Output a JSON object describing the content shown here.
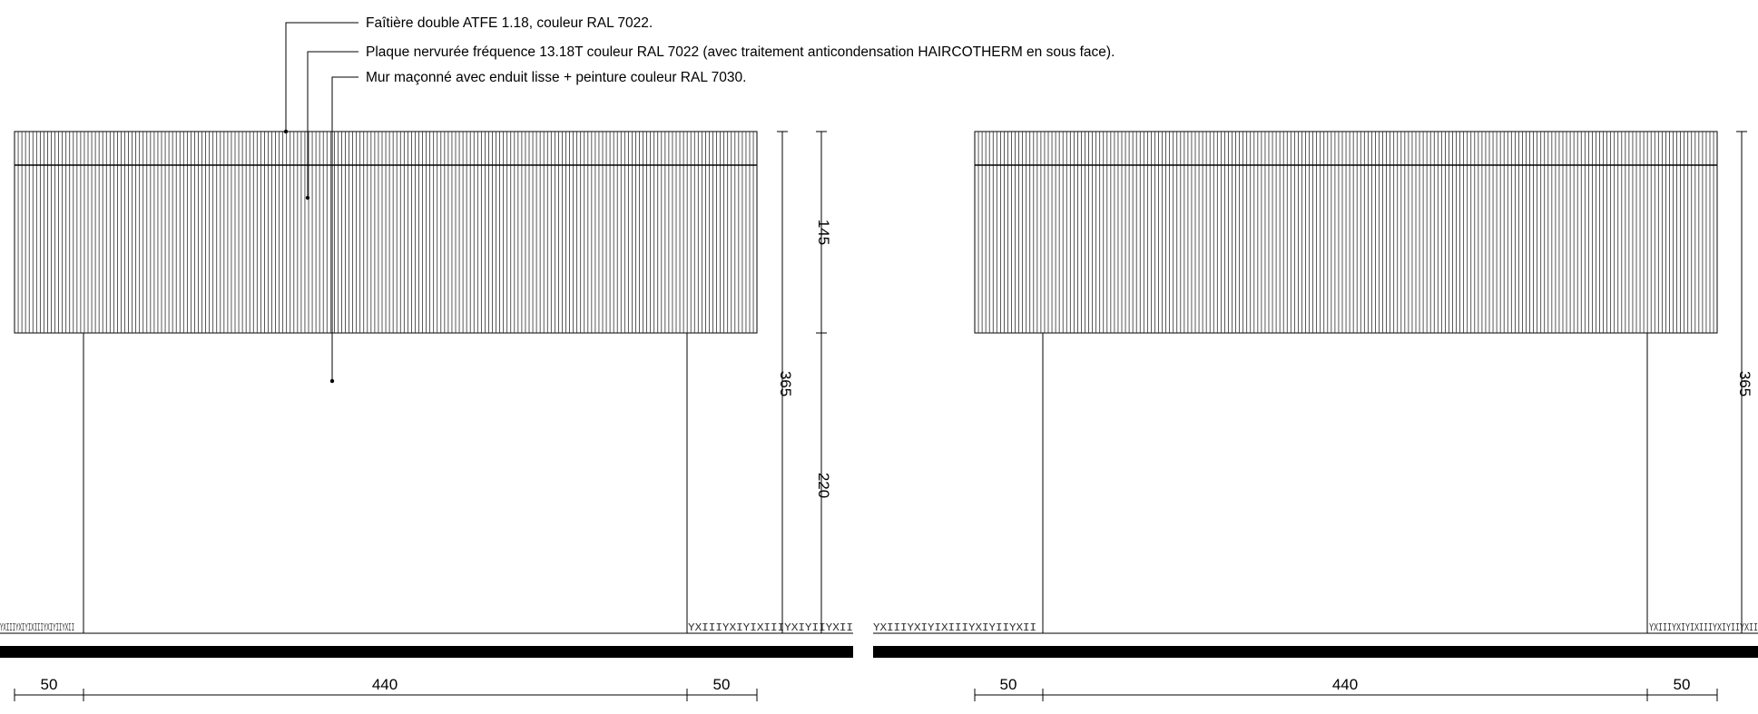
{
  "annotations": [
    "Faîtière double ATFE 1.18, couleur RAL 7022.",
    "Plaque nervurée fréquence 13.18T couleur RAL 7022 (avec traitement anticondensation HAIRCOTHERM en sous face).",
    "Mur maçonné avec enduit lisse + peinture couleur RAL 7030."
  ],
  "elevation_left": {
    "height_total": "365",
    "height_roof": "145",
    "height_wall": "220",
    "width_left": "50",
    "width_middle": "440",
    "width_right": "50"
  },
  "elevation_right": {
    "height_total": "365",
    "width_left": "50",
    "width_middle": "440",
    "width_right": "50"
  },
  "grass_pattern": "YXIIIYXIYIXIIIYXIYIIYXII"
}
